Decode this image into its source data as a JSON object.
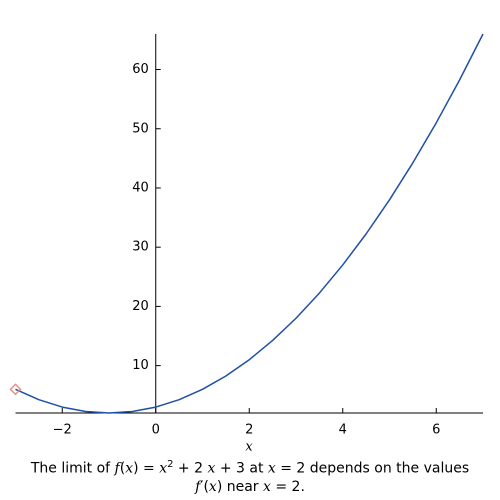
{
  "chart_data": {
    "type": "line",
    "x": [
      -3,
      -2.5,
      -2,
      -1.5,
      -1,
      -0.5,
      0,
      0.5,
      1,
      1.5,
      2,
      2.5,
      3,
      3.5,
      4,
      4.5,
      5,
      5.5,
      6,
      6.5,
      7
    ],
    "series": [
      {
        "color": "#1f4fa8",
        "values": [
          6,
          4.25,
          3,
          2.25,
          2,
          2.25,
          3,
          4.25,
          6,
          8.25,
          11,
          14.25,
          18,
          22.25,
          27,
          32.25,
          38,
          44.25,
          51,
          58.25,
          66
        ]
      }
    ],
    "marker": {
      "x": -3,
      "value": 6,
      "color": "#f08070"
    },
    "xlabel": "x",
    "xlim": [
      -3,
      7
    ],
    "ylim": [
      2,
      66
    ],
    "xticks": [
      {
        "value": -2,
        "label": "−2"
      },
      0,
      2,
      4,
      6
    ],
    "yticks": [
      10,
      20,
      30,
      40,
      50,
      60
    ],
    "axis_cross": [
      0,
      2
    ]
  },
  "caption": [
    [
      "The limit of ",
      "f",
      "(",
      "x",
      ") = ",
      "x",
      "2",
      " + 2 ",
      "x",
      " + 3 at ",
      "x",
      " = 2 depends on the values"
    ],
    [
      "f",
      "′(",
      "x",
      ") near ",
      "x",
      " = 2."
    ]
  ]
}
